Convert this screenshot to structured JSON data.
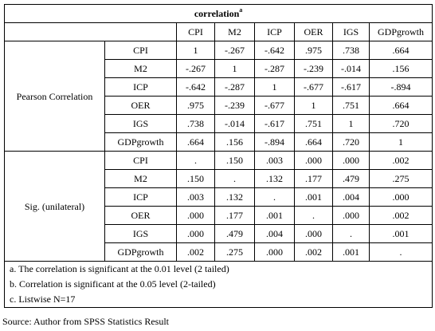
{
  "table": {
    "title": "correlation",
    "title_sup": "a",
    "columns": [
      "CPI",
      "M2",
      "ICP",
      "OER",
      "IGS",
      "GDPgrowth"
    ],
    "groups": [
      {
        "label": "Pearson Correlation",
        "rows": [
          {
            "label": "CPI",
            "cells": [
              "1",
              "-.267",
              "-.642",
              ".975",
              ".738",
              ".664"
            ]
          },
          {
            "label": "M2",
            "cells": [
              "-.267",
              "1",
              "-.287",
              "-.239",
              "-.014",
              ".156"
            ]
          },
          {
            "label": "ICP",
            "cells": [
              "-.642",
              "-.287",
              "1",
              "-.677",
              "-.617",
              "-.894"
            ]
          },
          {
            "label": "OER",
            "cells": [
              ".975",
              "-.239",
              "-.677",
              "1",
              ".751",
              ".664"
            ]
          },
          {
            "label": "IGS",
            "cells": [
              ".738",
              "-.014",
              "-.617",
              ".751",
              "1",
              ".720"
            ]
          },
          {
            "label": "GDPgrowth",
            "cells": [
              ".664",
              ".156",
              "-.894",
              ".664",
              ".720",
              "1"
            ]
          }
        ]
      },
      {
        "label": "Sig. (unilateral)",
        "rows": [
          {
            "label": "CPI",
            "cells": [
              ".",
              ".150",
              ".003",
              ".000",
              ".000",
              ".002"
            ]
          },
          {
            "label": "M2",
            "cells": [
              ".150",
              ".",
              ".132",
              ".177",
              ".479",
              ".275"
            ]
          },
          {
            "label": "ICP",
            "cells": [
              ".003",
              ".132",
              ".",
              ".001",
              ".004",
              ".000"
            ]
          },
          {
            "label": "OER",
            "cells": [
              ".000",
              ".177",
              ".001",
              ".",
              ".000",
              ".002"
            ]
          },
          {
            "label": "IGS",
            "cells": [
              ".000",
              ".479",
              ".004",
              ".000",
              ".",
              ".001"
            ]
          },
          {
            "label": "GDPgrowth",
            "cells": [
              ".002",
              ".275",
              ".000",
              ".002",
              ".001",
              "."
            ]
          }
        ]
      }
    ],
    "footnotes": [
      "a. The correlation is significant at the 0.01 level (2 tailed)",
      "b. Correlation is significant at the 0.05 level (2-tailed)",
      "c. Listwise N=17"
    ]
  },
  "source": "Source: Author from SPSS Statistics Result"
}
